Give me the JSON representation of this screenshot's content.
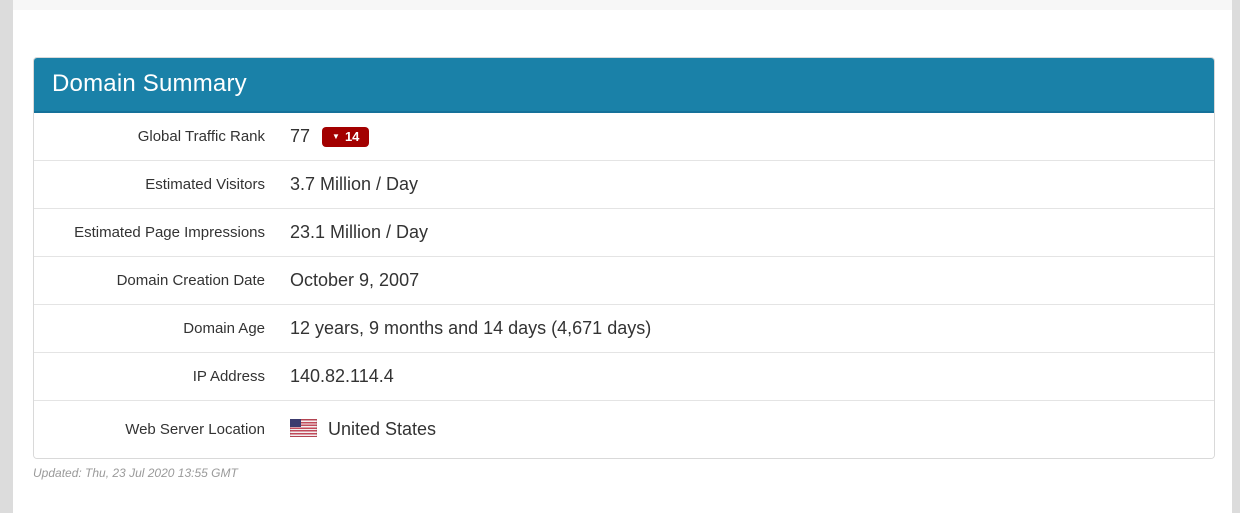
{
  "colors": {
    "header_bg": "#1a81a8",
    "badge_bg": "#a30000",
    "text": "#333333",
    "divider": "#e4e4e4",
    "muted": "#9a9a9a"
  },
  "panel": {
    "title": "Domain Summary",
    "rows": [
      {
        "label": "Global Traffic Rank",
        "value": "77",
        "badge": {
          "arrow": "▼",
          "delta": "14",
          "direction": "down"
        }
      },
      {
        "label": "Estimated Visitors",
        "value": "3.7 Million / Day"
      },
      {
        "label": "Estimated Page Impressions",
        "value": "23.1 Million / Day"
      },
      {
        "label": "Domain Creation Date",
        "value": "October 9, 2007"
      },
      {
        "label": "Domain Age",
        "value": "12 years, 9 months and 14 days (4,671 days)"
      },
      {
        "label": "IP Address",
        "value": "140.82.114.4"
      },
      {
        "label": "Web Server Location",
        "value": "United States",
        "flag": "us-flag-icon"
      }
    ]
  },
  "footer": {
    "updated": "Updated: Thu, 23 Jul 2020 13:55 GMT"
  }
}
